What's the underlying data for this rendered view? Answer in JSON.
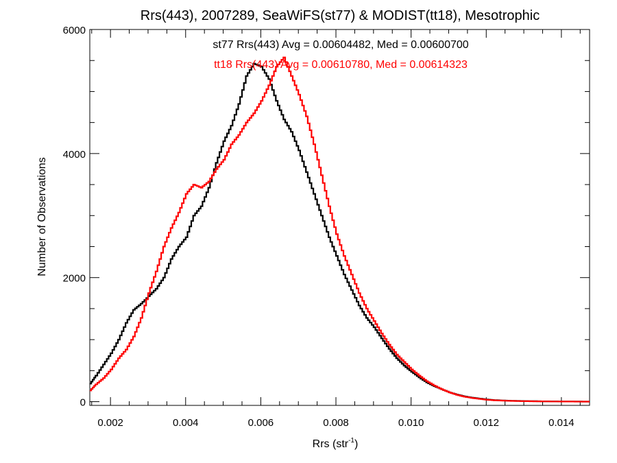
{
  "chart_data": {
    "type": "line",
    "title": "Rrs(443), 2007289, SeaWiFS(st77) & MODIST(tt18), Mesotrophic",
    "xlabel": "Rrs (str",
    "xlabel_sup": "-1",
    "xlabel_close": ")",
    "ylabel": "Number of Observations",
    "xlim": [
      0.00145,
      0.01475
    ],
    "ylim": [
      -60,
      6000
    ],
    "xticks": [
      0.002,
      0.004,
      0.006,
      0.008,
      0.01,
      0.012,
      0.014
    ],
    "xtick_labels": [
      "0.002",
      "0.004",
      "0.006",
      "0.008",
      "0.010",
      "0.012",
      "0.014"
    ],
    "yticks": [
      0,
      2000,
      4000,
      6000
    ],
    "ytick_labels": [
      "0",
      "2000",
      "4000",
      "6000"
    ],
    "grid": false,
    "annotations": [
      {
        "text": "st77 Rrs(443) Avg = 0.00604482, Med = 0.00600700",
        "color": "#000000"
      },
      {
        "text": "tt18 Rrs(443) Avg = 0.00610780, Med = 0.00614323",
        "color": "#ff0000"
      }
    ],
    "series": [
      {
        "color": "#000000",
        "x": [
          0.00145,
          0.0016,
          0.0018,
          0.002,
          0.0022,
          0.0024,
          0.0026,
          0.0028,
          0.003,
          0.0032,
          0.0034,
          0.0036,
          0.0038,
          0.004,
          0.0042,
          0.0044,
          0.0046,
          0.0048,
          0.005,
          0.0052,
          0.0054,
          0.0056,
          0.0058,
          0.006,
          0.0062,
          0.0064,
          0.0066,
          0.0068,
          0.007,
          0.0072,
          0.0074,
          0.0076,
          0.0078,
          0.008,
          0.0082,
          0.0084,
          0.0086,
          0.0088,
          0.009,
          0.0092,
          0.0094,
          0.0096,
          0.0098,
          0.01,
          0.0102,
          0.0104,
          0.0106,
          0.0108,
          0.011,
          0.0112,
          0.0114,
          0.0116,
          0.0118,
          0.012,
          0.0122,
          0.0124,
          0.0126,
          0.0128,
          0.013,
          0.0132,
          0.0134,
          0.0136,
          0.0138,
          0.014,
          0.0142,
          0.0144,
          0.0146,
          0.01475
        ],
        "y": [
          290,
          420,
          600,
          780,
          1000,
          1270,
          1480,
          1580,
          1700,
          1820,
          2000,
          2300,
          2500,
          2650,
          3000,
          3150,
          3450,
          3850,
          4200,
          4450,
          4800,
          5250,
          5450,
          5400,
          5200,
          4850,
          4550,
          4350,
          4050,
          3700,
          3350,
          3000,
          2650,
          2350,
          2050,
          1800,
          1550,
          1350,
          1200,
          1020,
          850,
          700,
          580,
          480,
          390,
          310,
          250,
          200,
          150,
          115,
          85,
          65,
          50,
          35,
          25,
          20,
          15,
          12,
          10,
          8,
          6,
          5,
          4,
          3,
          2,
          2,
          1,
          1
        ]
      },
      {
        "color": "#ff0000",
        "x": [
          0.00145,
          0.0016,
          0.0018,
          0.002,
          0.0022,
          0.0024,
          0.0026,
          0.0028,
          0.003,
          0.0032,
          0.0034,
          0.0036,
          0.0038,
          0.004,
          0.0042,
          0.0044,
          0.0046,
          0.0048,
          0.005,
          0.0052,
          0.0054,
          0.0056,
          0.0058,
          0.006,
          0.0062,
          0.0064,
          0.0066,
          0.0068,
          0.007,
          0.0072,
          0.0074,
          0.0076,
          0.0078,
          0.008,
          0.0082,
          0.0084,
          0.0086,
          0.0088,
          0.009,
          0.0092,
          0.0094,
          0.0096,
          0.0098,
          0.01,
          0.0102,
          0.0104,
          0.0106,
          0.0108,
          0.011,
          0.0112,
          0.0114,
          0.0116,
          0.0118,
          0.012,
          0.0122,
          0.0124,
          0.0126,
          0.0128,
          0.013,
          0.0132,
          0.0134,
          0.0136,
          0.0138,
          0.014,
          0.0142,
          0.0144,
          0.0146,
          0.01475
        ],
        "y": [
          180,
          280,
          380,
          520,
          700,
          840,
          1050,
          1350,
          1750,
          2100,
          2500,
          2800,
          3050,
          3350,
          3500,
          3450,
          3550,
          3750,
          3900,
          4150,
          4300,
          4500,
          4650,
          4850,
          5100,
          5400,
          5550,
          5250,
          4950,
          4600,
          4150,
          3650,
          3150,
          2700,
          2350,
          2050,
          1750,
          1500,
          1300,
          1100,
          920,
          760,
          640,
          520,
          420,
          330,
          260,
          200,
          150,
          110,
          80,
          60,
          45,
          30,
          22,
          17,
          13,
          10,
          8,
          6,
          5,
          4,
          3,
          2,
          2,
          1,
          1,
          1
        ]
      }
    ]
  }
}
